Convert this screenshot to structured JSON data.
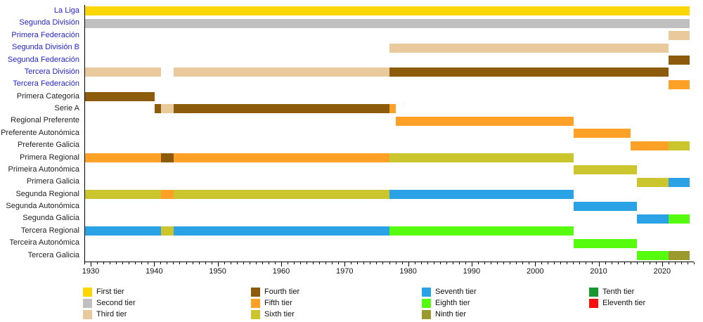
{
  "chart_data": {
    "type": "bar",
    "description": "Timeline (Gantt-style) of Galician/Spanish football league levels by season",
    "x_axis": {
      "start": 1929,
      "end": 2025,
      "major_ticks": [
        1930,
        1940,
        1950,
        1960,
        1970,
        1980,
        1990,
        2000,
        2010,
        2020
      ],
      "minor_tick_interval": 1
    },
    "present_end": 2024.3,
    "tiers": [
      {
        "tier": 1,
        "label": "First tier",
        "color": "#FFD700"
      },
      {
        "tier": 2,
        "label": "Second tier",
        "color": "#C0C0C0"
      },
      {
        "tier": 3,
        "label": "Third tier",
        "color": "#E9CA9D"
      },
      {
        "tier": 4,
        "label": "Fourth tier",
        "color": "#8D5B0C"
      },
      {
        "tier": 5,
        "label": "Fifth tier",
        "color": "#FFA126"
      },
      {
        "tier": 6,
        "label": "Sixth tier",
        "color": "#CCC62E"
      },
      {
        "tier": 7,
        "label": "Seventh tier",
        "color": "#2BA2E6"
      },
      {
        "tier": 8,
        "label": "Eighth tier",
        "color": "#57FB0F"
      },
      {
        "tier": 9,
        "label": "Ninth tier",
        "color": "#9C992F"
      },
      {
        "tier": 10,
        "label": "Tenth tier",
        "color": "#17982E"
      },
      {
        "tier": 11,
        "label": "Eleventh tier",
        "color": "#FA0D0D"
      }
    ],
    "rows": [
      {
        "label": "La Liga",
        "link": true,
        "segments": [
          {
            "from": 1929,
            "to": 2024.3,
            "tier": 1
          }
        ]
      },
      {
        "label": "Segunda División",
        "link": true,
        "segments": [
          {
            "from": 1929,
            "to": 2024.3,
            "tier": 2
          }
        ]
      },
      {
        "label": "Primera Federación",
        "link": true,
        "segments": [
          {
            "from": 2021,
            "to": 2024.3,
            "tier": 3
          }
        ]
      },
      {
        "label": "Segunda División B",
        "link": true,
        "segments": [
          {
            "from": 1977,
            "to": 2021,
            "tier": 3
          }
        ]
      },
      {
        "label": "Segunda Federación",
        "link": true,
        "segments": [
          {
            "from": 2021,
            "to": 2024.3,
            "tier": 4
          }
        ]
      },
      {
        "label": "Tercera División",
        "link": true,
        "segments": [
          {
            "from": 1929,
            "to": 1941,
            "tier": 3
          },
          {
            "from": 1943,
            "to": 1977,
            "tier": 3
          },
          {
            "from": 1977,
            "to": 2021,
            "tier": 4
          }
        ]
      },
      {
        "label": "Tercera Federación",
        "link": true,
        "segments": [
          {
            "from": 2021,
            "to": 2024.3,
            "tier": 5
          }
        ]
      },
      {
        "label": "Primera Categoria",
        "link": false,
        "segments": [
          {
            "from": 1929,
            "to": 1940,
            "tier": 4
          }
        ]
      },
      {
        "label": "Serie A",
        "link": false,
        "segments": [
          {
            "from": 1940,
            "to": 1941,
            "tier": 4
          },
          {
            "from": 1941,
            "to": 1943,
            "tier": 3
          },
          {
            "from": 1943,
            "to": 1977,
            "tier": 4
          },
          {
            "from": 1977,
            "to": 1978,
            "tier": 5
          }
        ]
      },
      {
        "label": "Regional Preferente",
        "link": false,
        "segments": [
          {
            "from": 1978,
            "to": 2006,
            "tier": 5
          }
        ]
      },
      {
        "label": "Preferente Autonómica",
        "link": false,
        "segments": [
          {
            "from": 2006,
            "to": 2015,
            "tier": 5
          }
        ]
      },
      {
        "label": "Preferente Galicia",
        "link": false,
        "segments": [
          {
            "from": 2015,
            "to": 2021,
            "tier": 5
          },
          {
            "from": 2021,
            "to": 2024.3,
            "tier": 6
          }
        ]
      },
      {
        "label": "Primera Regional",
        "link": false,
        "segments": [
          {
            "from": 1929,
            "to": 1941,
            "tier": 5
          },
          {
            "from": 1941,
            "to": 1943,
            "tier": 4
          },
          {
            "from": 1943,
            "to": 1977,
            "tier": 5
          },
          {
            "from": 1977,
            "to": 2006,
            "tier": 6
          }
        ]
      },
      {
        "label": "Primeira Autonómica",
        "link": false,
        "segments": [
          {
            "from": 2006,
            "to": 2016,
            "tier": 6
          }
        ]
      },
      {
        "label": "Primera Galicia",
        "link": false,
        "segments": [
          {
            "from": 2016,
            "to": 2021,
            "tier": 6
          },
          {
            "from": 2021,
            "to": 2024.3,
            "tier": 7
          }
        ]
      },
      {
        "label": "Segunda Regional",
        "link": false,
        "segments": [
          {
            "from": 1929,
            "to": 1941,
            "tier": 6
          },
          {
            "from": 1941,
            "to": 1943,
            "tier": 5
          },
          {
            "from": 1943,
            "to": 1977,
            "tier": 6
          },
          {
            "from": 1977,
            "to": 2006,
            "tier": 7
          }
        ]
      },
      {
        "label": "Segunda Autonómica",
        "link": false,
        "segments": [
          {
            "from": 2006,
            "to": 2016,
            "tier": 7
          }
        ]
      },
      {
        "label": "Segunda Galicia",
        "link": false,
        "segments": [
          {
            "from": 2016,
            "to": 2021,
            "tier": 7
          },
          {
            "from": 2021,
            "to": 2024.3,
            "tier": 8
          }
        ]
      },
      {
        "label": "Tercera Regional",
        "link": false,
        "segments": [
          {
            "from": 1929,
            "to": 1941,
            "tier": 7
          },
          {
            "from": 1941,
            "to": 1943,
            "tier": 6
          },
          {
            "from": 1943,
            "to": 1977,
            "tier": 7
          },
          {
            "from": 1977,
            "to": 2006,
            "tier": 8
          }
        ]
      },
      {
        "label": "Terceira Autonómica",
        "link": false,
        "segments": [
          {
            "from": 2006,
            "to": 2016,
            "tier": 8
          }
        ]
      },
      {
        "label": "Tercera Galicia",
        "link": false,
        "segments": [
          {
            "from": 2016,
            "to": 2021,
            "tier": 8
          },
          {
            "from": 2021,
            "to": 2024.3,
            "tier": 9
          }
        ]
      }
    ],
    "legend_position": "bottom",
    "colors": {
      "link_label": "#2525ce",
      "axis": "#000000"
    }
  }
}
